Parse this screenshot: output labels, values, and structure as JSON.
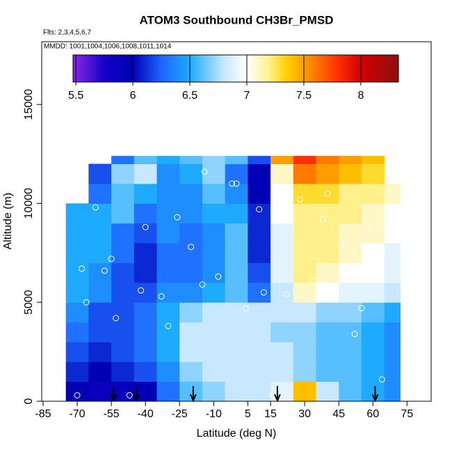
{
  "chart_data": {
    "type": "heatmap",
    "title": "ATOM3 Southbound CH3Br_PMSD",
    "subtitle": "Flts: 2,3,4,5,6,7",
    "annotation": "MMDD: 1001,1004,1006,1008,1011,1014",
    "x_label": "Latitude (deg N)",
    "y_label": "Altitude (m)",
    "xlim": [
      -85.6,
      85.6
    ],
    "ylim": [
      0,
      18170
    ],
    "xticks": [
      -85,
      -70,
      -55,
      -40,
      -25,
      -10,
      5,
      15,
      30,
      45,
      60,
      75
    ],
    "yticks": [
      0,
      5000,
      10000,
      15000
    ],
    "x_edges": [
      -75,
      -65,
      -55,
      -45,
      -35,
      -25,
      -15,
      -5,
      5,
      15,
      25,
      35,
      45,
      55,
      65,
      72
    ],
    "y_edges": [
      0,
      1000,
      2000,
      3000,
      4000,
      5000,
      6000,
      7000,
      8000,
      9000,
      10000,
      11000,
      12000,
      12400
    ],
    "z": [
      [
        6.0,
        5.9,
        5.9,
        6.0,
        6.3,
        6.6,
        6.7,
        6.8,
        6.8,
        6.9,
        7.4,
        6.8,
        6.6,
        6.5,
        6.4
      ],
      [
        6.1,
        6.0,
        6.1,
        6.2,
        6.4,
        6.7,
        6.8,
        6.8,
        6.8,
        6.8,
        6.7,
        6.6,
        6.6,
        6.5,
        6.4
      ],
      [
        6.2,
        6.1,
        6.2,
        6.3,
        6.5,
        6.8,
        6.8,
        6.8,
        6.8,
        6.8,
        6.7,
        6.6,
        6.6,
        6.5,
        6.4
      ],
      [
        6.3,
        6.2,
        6.2,
        6.3,
        6.5,
        6.8,
        6.8,
        6.8,
        6.8,
        6.7,
        6.7,
        6.6,
        6.6,
        6.5,
        6.4
      ],
      [
        6.4,
        6.2,
        6.2,
        6.3,
        6.5,
        6.7,
        6.8,
        6.8,
        6.8,
        6.8,
        6.8,
        6.7,
        6.7,
        6.6,
        6.5
      ],
      [
        6.5,
        6.4,
        6.2,
        6.2,
        6.4,
        6.4,
        6.5,
        6.6,
        6.3,
        6.8,
        7.1,
        7.0,
        6.9,
        6.9,
        6.8
      ],
      [
        6.5,
        6.4,
        6.2,
        6.1,
        6.3,
        6.3,
        6.4,
        6.6,
        6.2,
        6.9,
        7.2,
        7.1,
        7.0,
        7.0,
        6.9
      ],
      [
        6.5,
        6.5,
        6.3,
        6.1,
        6.3,
        6.3,
        6.4,
        6.6,
        6.1,
        6.9,
        7.2,
        7.2,
        7.1,
        7.0,
        6.9
      ],
      [
        6.5,
        6.5,
        6.3,
        6.2,
        6.4,
        6.3,
        6.4,
        6.6,
        6.1,
        6.9,
        7.2,
        7.2,
        7.1,
        7.1,
        7.0
      ],
      [
        6.5,
        6.5,
        6.6,
        6.3,
        6.4,
        6.4,
        6.5,
        6.5,
        6.1,
        7.0,
        7.2,
        7.2,
        7.2,
        7.1,
        7.0
      ],
      [
        null,
        6.3,
        6.6,
        6.5,
        6.4,
        6.4,
        6.6,
        6.4,
        6.0,
        7.0,
        7.3,
        7.3,
        7.2,
        7.2,
        7.1
      ],
      [
        null,
        6.2,
        6.7,
        6.8,
        6.4,
        6.5,
        6.7,
        6.3,
        6.0,
        7.1,
        7.6,
        7.5,
        7.4,
        7.3,
        null
      ],
      [
        null,
        null,
        6.3,
        6.6,
        6.5,
        6.6,
        6.7,
        6.6,
        6.2,
        7.5,
        7.8,
        7.6,
        7.5,
        7.4,
        null
      ]
    ],
    "clim": [
      5.475,
      8.33
    ],
    "cticks": [
      5.5,
      6.0,
      6.5,
      7.0,
      7.5,
      8.0
    ],
    "colorscale": [
      [
        5.475,
        "#8a2be2"
      ],
      [
        5.75,
        "#1400c8"
      ],
      [
        6.0,
        "#0000b4"
      ],
      [
        6.25,
        "#1e64ff"
      ],
      [
        6.5,
        "#1eaaff"
      ],
      [
        6.8,
        "#c8e8ff"
      ],
      [
        7.0,
        "#ffffff"
      ],
      [
        7.2,
        "#fff08c"
      ],
      [
        7.35,
        "#ffd000"
      ],
      [
        7.55,
        "#ff8c00"
      ],
      [
        7.8,
        "#ff3000"
      ],
      [
        8.0,
        "#d20000"
      ],
      [
        8.33,
        "#8c1010"
      ]
    ],
    "arrows_x": [
      -54,
      -44,
      -19,
      18,
      61
    ],
    "samples": {
      "x": [
        -70,
        -66,
        -62,
        -58,
        -53,
        -47,
        -40,
        -33,
        -26,
        -20,
        -14,
        -8,
        -2,
        4,
        10,
        16,
        22,
        28,
        34,
        40,
        46,
        52,
        58,
        64,
        -68,
        -55,
        -42,
        -30,
        -15,
        0,
        12,
        38,
        55
      ],
      "y": [
        300,
        5000,
        9800,
        6600,
        4200,
        300,
        8800,
        5300,
        9300,
        7800,
        11600,
        6300,
        11000,
        4700,
        9700,
        300,
        5400,
        10200,
        6100,
        10500,
        7900,
        3400,
        8700,
        1100,
        6700,
        7200,
        5600,
        3800,
        5900,
        11000,
        5500,
        9200,
        4700
      ]
    }
  }
}
